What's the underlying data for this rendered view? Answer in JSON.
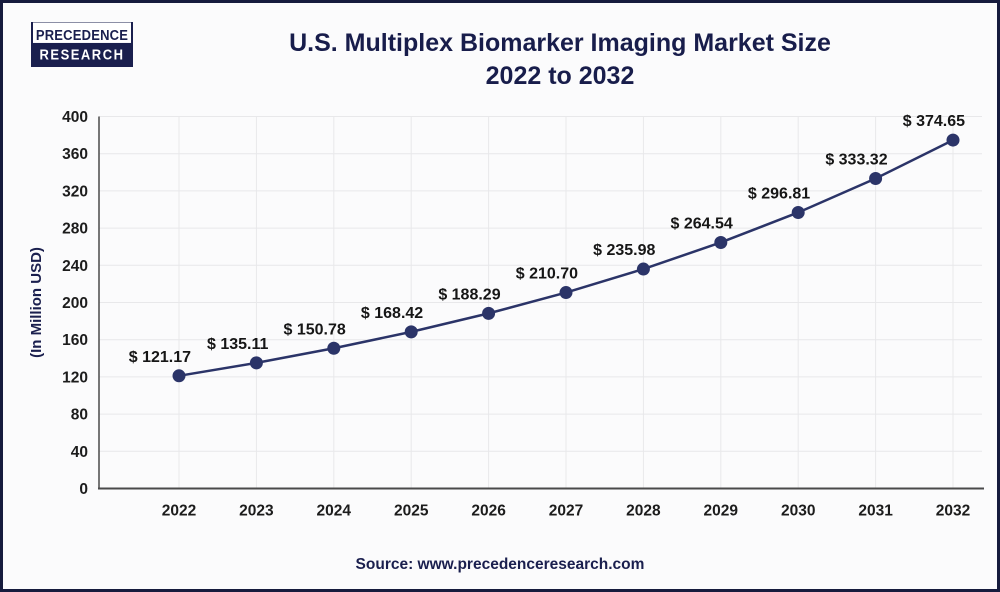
{
  "logo": {
    "top": "PRECEDENCE",
    "bottom": "RESEARCH"
  },
  "title_lines": [
    "U.S. Multiplex Biomarker Imaging Market Size",
    "2022 to 2032"
  ],
  "source": "Source: www.precedenceresearch.com",
  "chart_data": {
    "type": "line",
    "title": "U.S. Multiplex Biomarker Imaging Market Size 2022 to 2032",
    "categories": [
      "2022",
      "2023",
      "2024",
      "2025",
      "2026",
      "2027",
      "2028",
      "2029",
      "2030",
      "2031",
      "2032"
    ],
    "values": [
      121.17,
      135.11,
      150.78,
      168.42,
      188.29,
      210.7,
      235.98,
      264.54,
      296.81,
      333.32,
      374.65
    ],
    "point_labels": [
      "$ 121.17",
      "$ 135.11",
      "$ 150.78",
      "$ 168.42",
      "$ 188.29",
      "$ 210.70",
      "$ 235.98",
      "$ 264.54",
      "$ 296.81",
      "$ 333.32",
      "$ 374.65"
    ],
    "xlabel": "",
    "ylabel": "(In Million USD)",
    "ylim": [
      0,
      400
    ],
    "yticks": [
      0,
      40,
      80,
      120,
      160,
      200,
      240,
      280,
      320,
      360,
      400
    ],
    "grid": true,
    "legend": "none",
    "colors": {
      "line": "#2B3468",
      "marker": "#2B3468",
      "grid": "#E8E8EA",
      "axis": "#4A4A4A",
      "tick_text": "#1C1C1C",
      "label_text": "#161616",
      "navy": "#1A1F4E"
    }
  }
}
